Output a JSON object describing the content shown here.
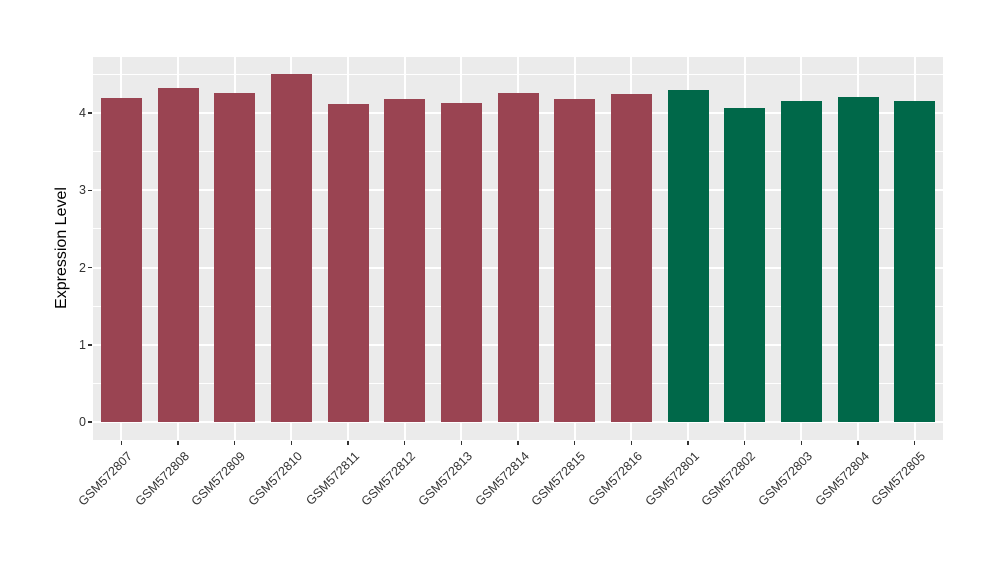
{
  "chart_data": {
    "type": "bar",
    "title": "",
    "xlabel": "",
    "ylabel": "Expression Level",
    "y_ticks": [
      0,
      1,
      2,
      3,
      4
    ],
    "y_minor_ticks": [
      0.5,
      1.5,
      2.5,
      3.5,
      4.5
    ],
    "ylim": [
      0,
      4.73
    ],
    "legend": "none",
    "grid": {
      "horizontal_major": true,
      "horizontal_minor": true,
      "vertical_major": true
    },
    "bars": [
      {
        "label": "GSM572807",
        "value": 4.2,
        "group": "maroon"
      },
      {
        "label": "GSM572808",
        "value": 4.32,
        "group": "maroon"
      },
      {
        "label": "GSM572809",
        "value": 4.26,
        "group": "maroon"
      },
      {
        "label": "GSM572810",
        "value": 4.51,
        "group": "maroon"
      },
      {
        "label": "GSM572811",
        "value": 4.12,
        "group": "maroon"
      },
      {
        "label": "GSM572812",
        "value": 4.18,
        "group": "maroon"
      },
      {
        "label": "GSM572813",
        "value": 4.13,
        "group": "maroon"
      },
      {
        "label": "GSM572814",
        "value": 4.26,
        "group": "maroon"
      },
      {
        "label": "GSM572815",
        "value": 4.18,
        "group": "maroon"
      },
      {
        "label": "GSM572816",
        "value": 4.24,
        "group": "maroon"
      },
      {
        "label": "GSM572801",
        "value": 4.3,
        "group": "green"
      },
      {
        "label": "GSM572802",
        "value": 4.07,
        "group": "green"
      },
      {
        "label": "GSM572803",
        "value": 4.16,
        "group": "green"
      },
      {
        "label": "GSM572804",
        "value": 4.21,
        "group": "green"
      },
      {
        "label": "GSM572805",
        "value": 4.15,
        "group": "green"
      }
    ],
    "colors": {
      "maroon": "#9A4452",
      "green": "#006849",
      "panel_background": "#EBEBEB",
      "gridline": "#FFFFFF",
      "axis_text": "#333333",
      "axis_title": "#000000"
    }
  }
}
